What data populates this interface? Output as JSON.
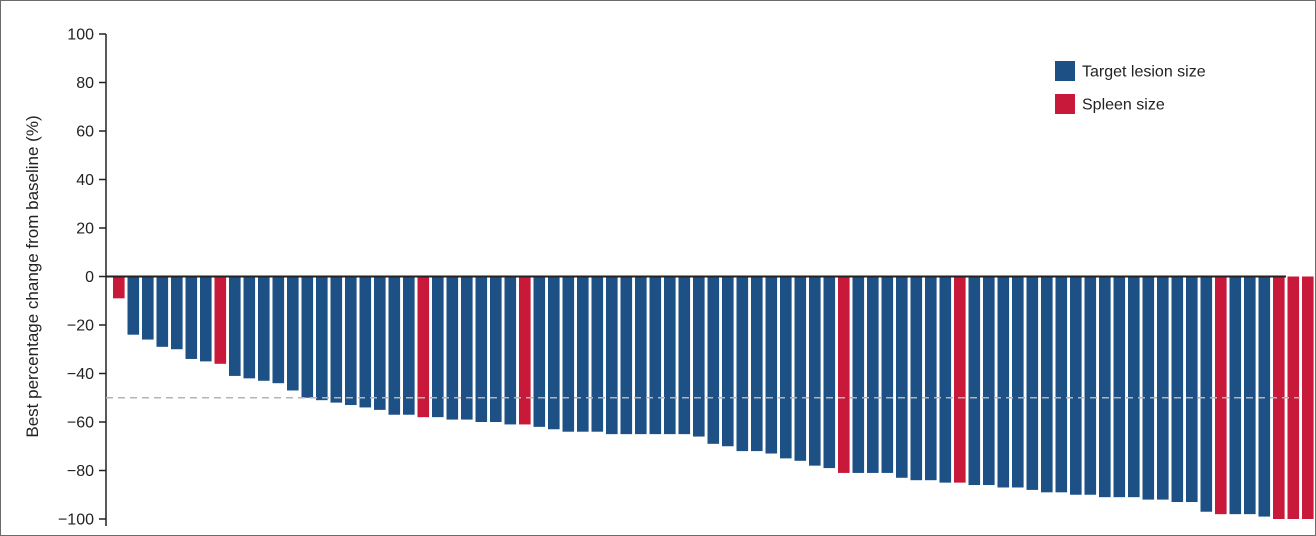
{
  "chart_data": {
    "type": "bar",
    "title": "",
    "xlabel": "",
    "ylabel": "Best percentage change from baseline (%)",
    "ylim": [
      -100,
      100
    ],
    "yticks": [
      100,
      80,
      60,
      40,
      20,
      0,
      -20,
      -40,
      -60,
      -80,
      -100
    ],
    "ytick_labels": [
      "100",
      "80",
      "60",
      "40",
      "20",
      "0",
      "−20",
      "−40",
      "−60",
      "−80",
      "−100"
    ],
    "reference_line": -50,
    "grid": false,
    "legend_position": "top-right",
    "series": [
      {
        "name": "Target lesion size",
        "color": "#1d5085"
      },
      {
        "name": "Spleen size",
        "color": "#c8193a"
      }
    ],
    "values": [
      -9,
      -24,
      -26,
      -29,
      -30,
      -34,
      -35,
      -36,
      -41,
      -42,
      -43,
      -44,
      -47,
      -50,
      -51,
      -52,
      -53,
      -54,
      -55,
      -57,
      -57,
      -58,
      -58,
      -59,
      -59,
      -60,
      -60,
      -61,
      -61,
      -62,
      -63,
      -64,
      -64,
      -64,
      -65,
      -65,
      -65,
      -65,
      -65,
      -65,
      -66,
      -69,
      -70,
      -72,
      -72,
      -73,
      -75,
      -76,
      -78,
      -79,
      -81,
      -81,
      -81,
      -81,
      -83,
      -84,
      -84,
      -85,
      -85,
      -86,
      -86,
      -87,
      -87,
      -88,
      -89,
      -89,
      -90,
      -90,
      -91,
      -91,
      -91,
      -92,
      -92,
      -93,
      -93,
      -97,
      -98,
      -98,
      -98,
      -99,
      -100,
      -100,
      -100,
      -100
    ],
    "bar_series": [
      1,
      0,
      0,
      0,
      0,
      0,
      0,
      1,
      0,
      0,
      0,
      0,
      0,
      0,
      0,
      0,
      0,
      0,
      0,
      0,
      0,
      1,
      0,
      0,
      0,
      0,
      0,
      0,
      1,
      0,
      0,
      0,
      0,
      0,
      0,
      0,
      0,
      0,
      0,
      0,
      0,
      0,
      0,
      0,
      0,
      0,
      0,
      0,
      0,
      0,
      1,
      0,
      0,
      0,
      0,
      0,
      0,
      0,
      1,
      0,
      0,
      0,
      0,
      0,
      0,
      0,
      0,
      0,
      0,
      0,
      0,
      0,
      0,
      0,
      0,
      0,
      1,
      0,
      0,
      0,
      1,
      1,
      1,
      0
    ]
  }
}
